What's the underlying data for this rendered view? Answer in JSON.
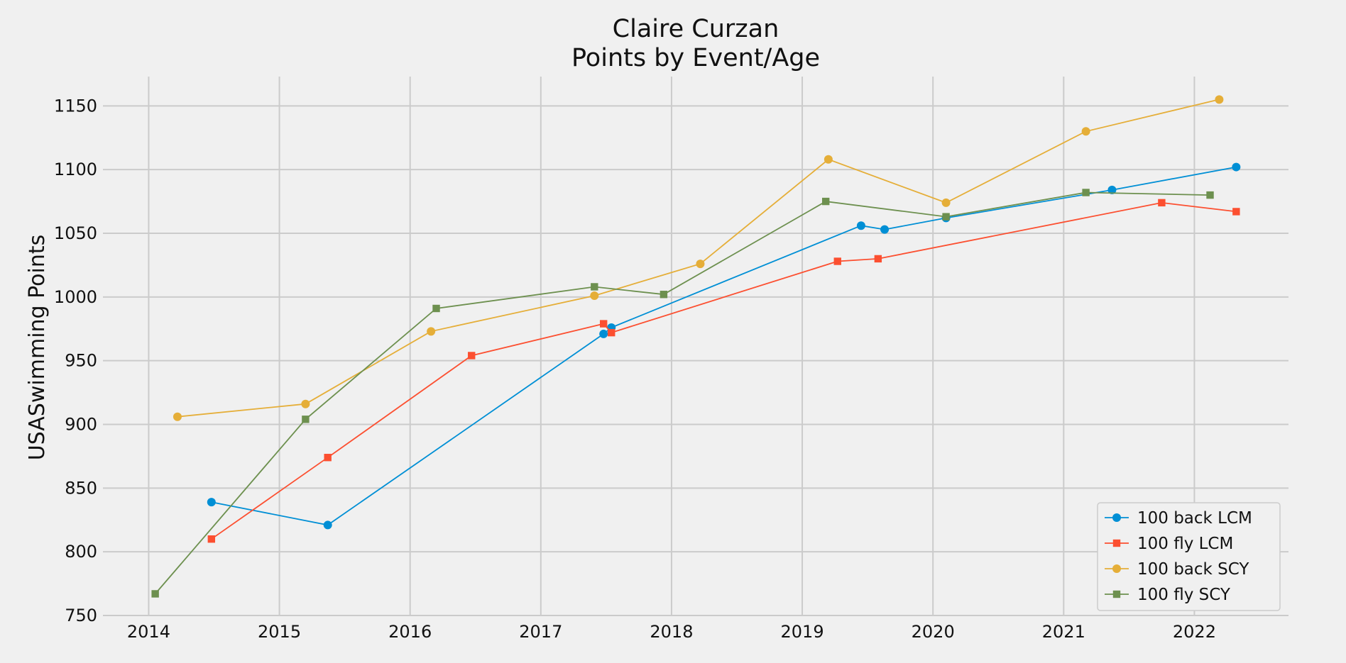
{
  "chart_data": {
    "type": "line",
    "title": "Claire Curzan",
    "subtitle": "Points by Event/Age",
    "xlabel": "",
    "ylabel": "USASwimming Points",
    "xlim": [
      2013.65,
      2022.72
    ],
    "ylim": [
      750,
      1173
    ],
    "x_ticks": [
      "2014",
      "2015",
      "2016",
      "2017",
      "2018",
      "2019",
      "2020",
      "2021",
      "2022"
    ],
    "y_ticks": [
      "750",
      "800",
      "850",
      "900",
      "950",
      "1000",
      "1050",
      "1100",
      "1150"
    ],
    "grid": true,
    "legend_position": "lower-right",
    "series": [
      {
        "name": "100 back LCM",
        "color": "#008fd5",
        "marker": "circle",
        "points": [
          {
            "x": 2014.48,
            "y": 839
          },
          {
            "x": 2015.37,
            "y": 821
          },
          {
            "x": 2017.48,
            "y": 971
          },
          {
            "x": 2017.54,
            "y": 976
          },
          {
            "x": 2019.45,
            "y": 1056
          },
          {
            "x": 2019.63,
            "y": 1053
          },
          {
            "x": 2020.1,
            "y": 1062
          },
          {
            "x": 2021.37,
            "y": 1084
          },
          {
            "x": 2022.32,
            "y": 1102
          }
        ]
      },
      {
        "name": "100 fly LCM",
        "color": "#fc4f30",
        "marker": "square",
        "points": [
          {
            "x": 2014.48,
            "y": 810
          },
          {
            "x": 2015.37,
            "y": 874
          },
          {
            "x": 2016.47,
            "y": 954
          },
          {
            "x": 2017.48,
            "y": 979
          },
          {
            "x": 2017.54,
            "y": 972
          },
          {
            "x": 2019.27,
            "y": 1028
          },
          {
            "x": 2019.58,
            "y": 1030
          },
          {
            "x": 2021.75,
            "y": 1074
          },
          {
            "x": 2022.32,
            "y": 1067
          }
        ]
      },
      {
        "name": "100 back SCY",
        "color": "#e5ae38",
        "marker": "circle",
        "points": [
          {
            "x": 2014.22,
            "y": 906
          },
          {
            "x": 2015.2,
            "y": 916
          },
          {
            "x": 2016.16,
            "y": 973
          },
          {
            "x": 2017.41,
            "y": 1001
          },
          {
            "x": 2018.22,
            "y": 1026
          },
          {
            "x": 2019.2,
            "y": 1108
          },
          {
            "x": 2020.1,
            "y": 1074
          },
          {
            "x": 2021.17,
            "y": 1130
          },
          {
            "x": 2022.19,
            "y": 1155
          }
        ]
      },
      {
        "name": "100 fly SCY",
        "color": "#6d904f",
        "marker": "square",
        "points": [
          {
            "x": 2014.05,
            "y": 767
          },
          {
            "x": 2015.2,
            "y": 904
          },
          {
            "x": 2016.2,
            "y": 991
          },
          {
            "x": 2017.41,
            "y": 1008
          },
          {
            "x": 2017.94,
            "y": 1002
          },
          {
            "x": 2019.18,
            "y": 1075
          },
          {
            "x": 2020.1,
            "y": 1063
          },
          {
            "x": 2021.17,
            "y": 1082
          },
          {
            "x": 2022.12,
            "y": 1080
          }
        ]
      }
    ]
  }
}
